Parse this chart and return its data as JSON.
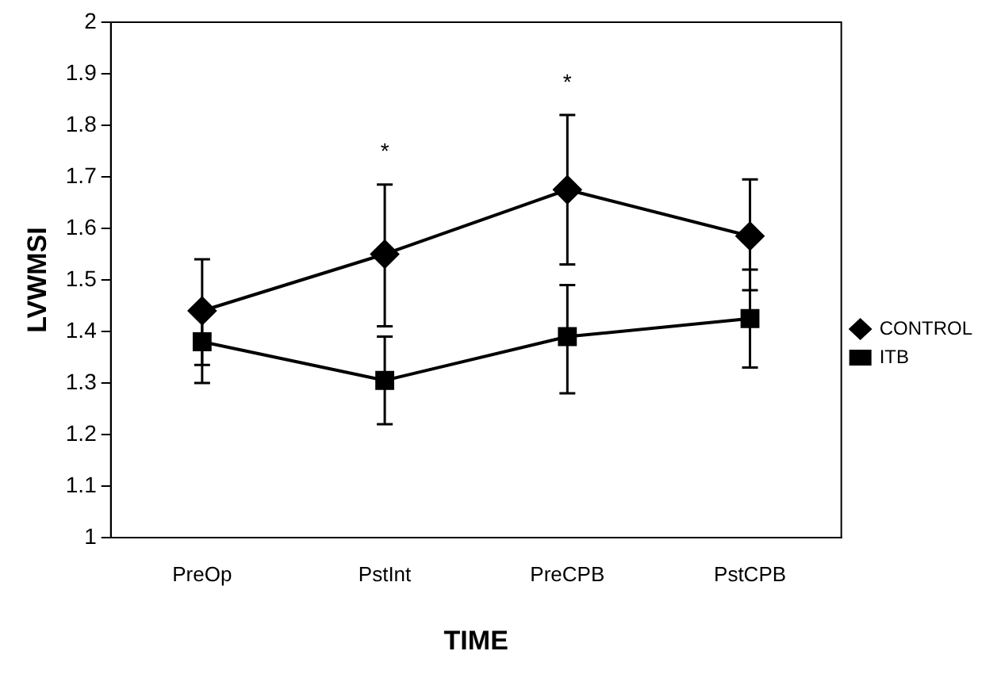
{
  "chart_data": {
    "type": "line",
    "xlabel": "TIME",
    "ylabel": "LVWMSI",
    "categories": [
      "PreOp",
      "PstInt",
      "PreCPB",
      "PstCPB"
    ],
    "series": [
      {
        "name": "CONTROL",
        "color": "#000000",
        "marker": "diamond",
        "values": [
          1.44,
          1.55,
          1.675,
          1.585
        ],
        "errors": [
          [
            1.335,
            1.54
          ],
          [
            1.41,
            1.685
          ],
          [
            1.53,
            1.82
          ],
          [
            1.48,
            1.695
          ]
        ]
      },
      {
        "name": "ITB",
        "color": "#000000",
        "marker": "square",
        "values": [
          1.38,
          1.305,
          1.39,
          1.425
        ],
        "errors": [
          [
            1.3,
            1.45
          ],
          [
            1.22,
            1.39
          ],
          [
            1.28,
            1.49
          ],
          [
            1.33,
            1.52
          ]
        ]
      }
    ],
    "ylim": [
      1,
      2
    ],
    "yticks": [
      1,
      1.1,
      1.2,
      1.3,
      1.4,
      1.5,
      1.6,
      1.7,
      1.8,
      1.9,
      2
    ],
    "grid": false,
    "legend": "right",
    "line_style": "solid",
    "annotations": [
      "*",
      "*"
    ]
  }
}
